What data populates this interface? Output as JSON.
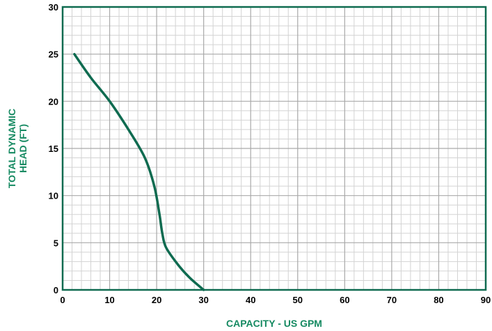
{
  "chart_data": {
    "type": "line",
    "title": "",
    "xlabel": "CAPACITY - US GPM",
    "ylabel_lines": [
      "TOTAL DYNAMIC",
      "HEAD (FT)"
    ],
    "xlim": [
      0,
      90
    ],
    "ylim": [
      0,
      30
    ],
    "x_ticks": [
      0,
      10,
      20,
      30,
      40,
      50,
      60,
      70,
      80,
      90
    ],
    "y_ticks": [
      0,
      5,
      10,
      15,
      20,
      25,
      30
    ],
    "x_tick_labels": [
      "0",
      "10",
      "20",
      "30",
      "40",
      "50",
      "60",
      "70",
      "80",
      "90"
    ],
    "y_tick_labels": [
      "0",
      "5",
      "10",
      "15",
      "20",
      "25",
      "30"
    ],
    "grid": true,
    "minor_grid_per_major": 5,
    "series": [
      {
        "x": [
          2.5,
          6,
          10,
          14,
          17.5,
          19.5,
          20.6,
          21.2,
          22,
          24.5,
          27,
          30
        ],
        "y": [
          25,
          22.5,
          20,
          17,
          14,
          11,
          8,
          6,
          4.5,
          2.7,
          1.3,
          0
        ]
      }
    ],
    "colors": {
      "line": "#0f6b50",
      "frame": "#0f6b50",
      "axis_title": "#168a62",
      "major_grid": "#a9a9a9",
      "minor_grid": "#d3d3d3"
    }
  }
}
